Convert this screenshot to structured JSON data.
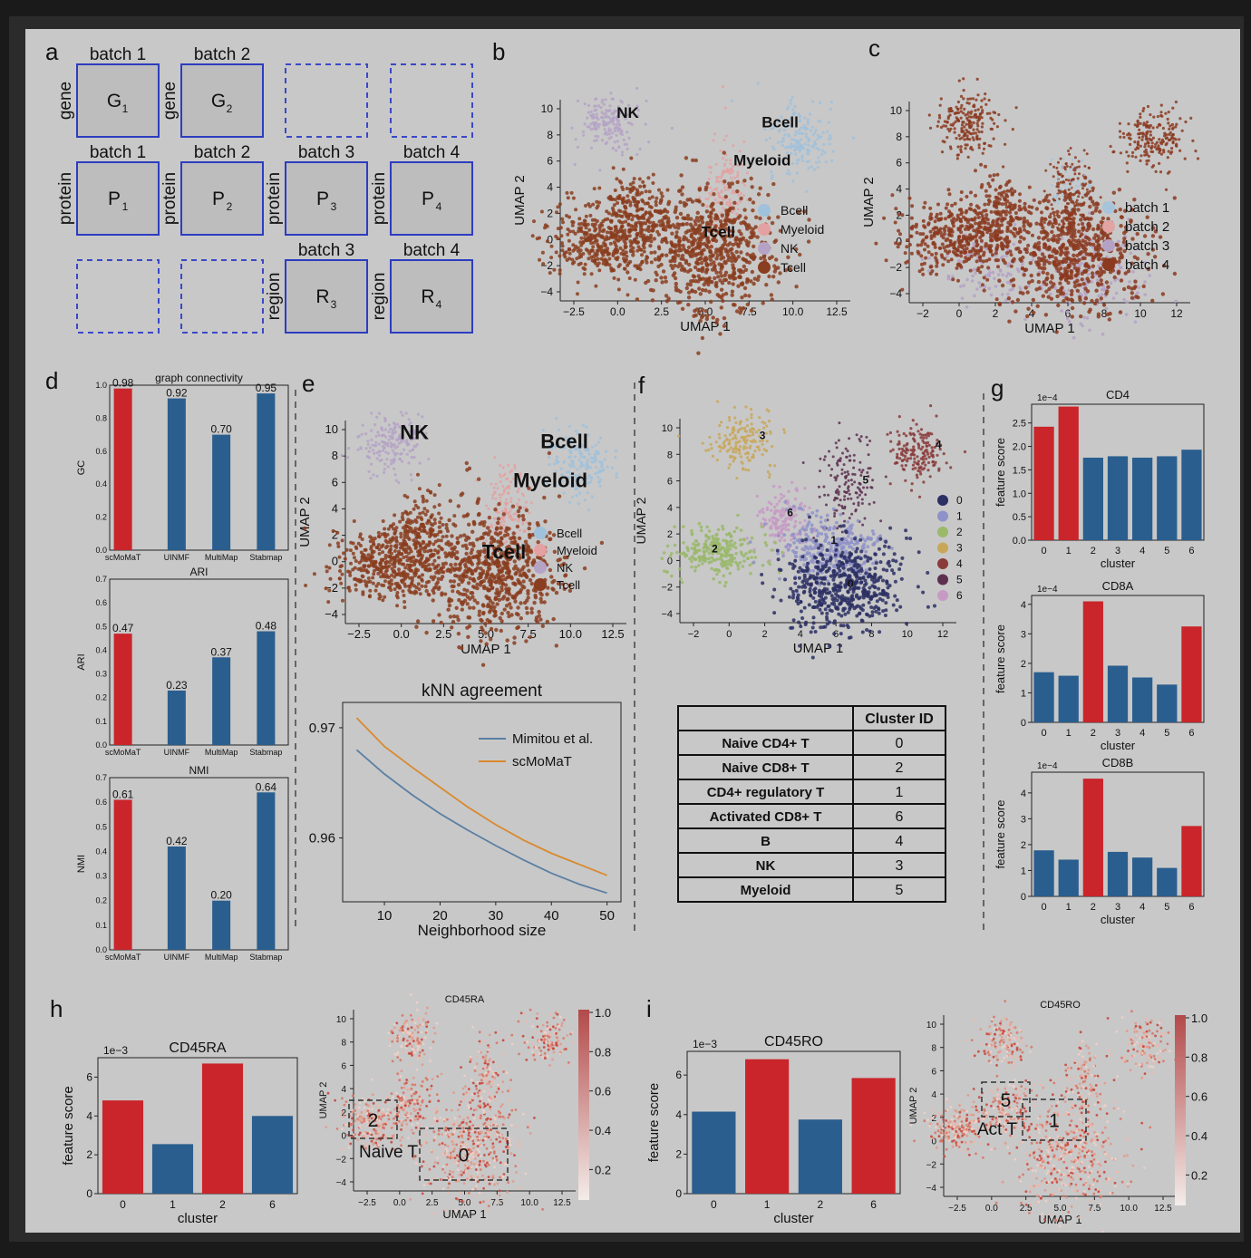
{
  "panel_labels": [
    "a",
    "b",
    "c",
    "d",
    "e",
    "f",
    "g",
    "h",
    "i"
  ],
  "colors": {
    "scmomat": "#c9252a",
    "other": "#2a5e8e",
    "bcell": "#9fc1dc",
    "myeloid": "#e4a1a1",
    "nk": "#b5a3c6",
    "tcell": "#8a3d1f",
    "batch1": "#a6c4da",
    "batch2": "#e0a4a2",
    "batch3": "#b4a1c6",
    "batch4": "#8b3a20",
    "clusters": [
      "#2b2f63",
      "#8f92c9",
      "#9ab96b",
      "#c9a75a",
      "#8a3a3a",
      "#5c2f4f",
      "#c79ac4"
    ]
  },
  "panel_a": {
    "row1": [
      {
        "header": "batch 1",
        "side": "gene",
        "box": "G",
        "sub": "1"
      },
      {
        "header": "batch 2",
        "side": "gene",
        "box": "G",
        "sub": "2"
      },
      {
        "header": "",
        "side": "",
        "box": "",
        "sub": "",
        "empty": true
      },
      {
        "header": "",
        "side": "",
        "box": "",
        "sub": "",
        "empty": true
      }
    ],
    "row2": [
      {
        "header": "batch 1",
        "side": "protein",
        "box": "P",
        "sub": "1"
      },
      {
        "header": "batch 2",
        "side": "protein",
        "box": "P",
        "sub": "2"
      },
      {
        "header": "batch 3",
        "side": "protein",
        "box": "P",
        "sub": "3"
      },
      {
        "header": "batch 4",
        "side": "protein",
        "box": "P",
        "sub": "4"
      }
    ],
    "row3": [
      {
        "header": "",
        "side": "",
        "box": "",
        "sub": "",
        "empty": true
      },
      {
        "header": "",
        "side": "",
        "box": "",
        "sub": "",
        "empty": true
      },
      {
        "header": "batch 3",
        "side": "region",
        "box": "R",
        "sub": "3"
      },
      {
        "header": "batch 4",
        "side": "region",
        "box": "R",
        "sub": "4"
      }
    ]
  },
  "umap_b": {
    "xlabel": "UMAP 1",
    "ylabel": "UMAP 2",
    "xticks": [
      "−2.5",
      "0.0",
      "2.5",
      "5.0",
      "7.5",
      "10.0",
      "12.5"
    ],
    "yticks": [
      "10",
      "8",
      "6",
      "4",
      "2",
      "0",
      "−2",
      "−4"
    ],
    "labels": [
      "NK",
      "Bcell",
      "Myeloid",
      "Tcell"
    ],
    "legend": [
      "Bcell",
      "Myeloid",
      "NK",
      "Tcell"
    ]
  },
  "umap_c": {
    "xlabel": "UMAP 1",
    "ylabel": "UMAP 2",
    "xticks": [
      "−2",
      "0",
      "2",
      "4",
      "6",
      "8",
      "10",
      "12"
    ],
    "yticks": [
      "10",
      "8",
      "6",
      "4",
      "2",
      "0",
      "−2",
      "−4"
    ],
    "legend": [
      "batch 1",
      "batch 2",
      "batch 3",
      "batch 4"
    ]
  },
  "bars_d": [
    {
      "title": "graph connectivity",
      "ylabel": "GC",
      "ylim": [
        0,
        1.0
      ],
      "yticks": [
        "1.0",
        "0.8",
        "0.6",
        "0.4",
        "0.2",
        "0.0"
      ],
      "categories": [
        "scMoMaT",
        "UINMF",
        "MultiMap",
        "Stabmap"
      ],
      "values": [
        0.98,
        0.92,
        0.7,
        0.95
      ],
      "value_labels": [
        "0.98",
        "0.92",
        "0.70",
        "0.95"
      ]
    },
    {
      "title": "ARI",
      "ylabel": "ARI",
      "ylim": [
        0,
        0.7
      ],
      "yticks": [
        "0.7",
        "0.6",
        "0.5",
        "0.4",
        "0.3",
        "0.2",
        "0.1",
        "0.0"
      ],
      "categories": [
        "scMoMaT",
        "UINMF",
        "MultiMap",
        "Stabmap"
      ],
      "values": [
        0.47,
        0.23,
        0.37,
        0.48
      ],
      "value_labels": [
        "0.47",
        "0.23",
        "0.37",
        "0.48"
      ]
    },
    {
      "title": "NMI",
      "ylabel": "NMI",
      "ylim": [
        0,
        0.7
      ],
      "yticks": [
        "0.7",
        "0.6",
        "0.5",
        "0.4",
        "0.3",
        "0.2",
        "0.1",
        "0.0"
      ],
      "categories": [
        "scMoMaT",
        "UINMF",
        "MultiMap",
        "Stabmap"
      ],
      "values": [
        0.61,
        0.42,
        0.2,
        0.64
      ],
      "value_labels": [
        "0.61",
        "0.42",
        "0.20",
        "0.64"
      ]
    }
  ],
  "umap_e": {
    "xlabel": "UMAP 1",
    "ylabel": "UMAP 2",
    "xticks": [
      "−2.5",
      "0.0",
      "2.5",
      "5.0",
      "7.5",
      "10.0",
      "12.5"
    ],
    "yticks": [
      "10",
      "8",
      "6",
      "4",
      "2",
      "0",
      "−2",
      "−4"
    ],
    "labels": [
      "NK",
      "Bcell",
      "Myeloid",
      "Tcell"
    ],
    "legend": [
      "Bcell",
      "Myeloid",
      "NK",
      "Tcell"
    ]
  },
  "knn": {
    "title": "kNN agreement",
    "xlabel": "Neighborhood size",
    "xticks": [
      "10",
      "20",
      "30",
      "40",
      "50"
    ],
    "yticks": [
      "0.97",
      "0.96"
    ],
    "legend": [
      "Mimitou et al.",
      "scMoMaT"
    ],
    "line_colors": [
      "#5a7fa3",
      "#d9892e"
    ],
    "x": [
      5,
      10,
      15,
      20,
      25,
      30,
      35,
      40,
      45,
      50
    ],
    "series": [
      {
        "name": "Mimitou et al.",
        "values": [
          0.968,
          0.9658,
          0.9639,
          0.9622,
          0.9607,
          0.9593,
          0.958,
          0.9568,
          0.9558,
          0.955
        ]
      },
      {
        "name": "scMoMaT",
        "values": [
          0.9709,
          0.9683,
          0.9664,
          0.9646,
          0.9628,
          0.9612,
          0.9598,
          0.9586,
          0.9576,
          0.9566
        ]
      }
    ]
  },
  "umap_f": {
    "xlabel": "UMAP 1",
    "ylabel": "UMAP 2",
    "xticks": [
      "−2",
      "0",
      "2",
      "4",
      "6",
      "8",
      "10",
      "12"
    ],
    "yticks": [
      "10",
      "8",
      "6",
      "4",
      "2",
      "0",
      "−2",
      "−4"
    ],
    "cluster_labels": [
      "0",
      "1",
      "2",
      "3",
      "4",
      "5",
      "6"
    ],
    "legend": [
      "0",
      "1",
      "2",
      "3",
      "4",
      "5",
      "6"
    ]
  },
  "table_f": {
    "header": [
      "",
      "Cluster ID"
    ],
    "rows": [
      [
        "Naive CD4+ T",
        "0"
      ],
      [
        "Naive CD8+ T",
        "2"
      ],
      [
        "CD4+ regulatory T",
        "1"
      ],
      [
        "Activated CD8+  T",
        "6"
      ],
      [
        "B",
        "4"
      ],
      [
        "NK",
        "3"
      ],
      [
        "Myeloid",
        "5"
      ]
    ]
  },
  "bars_g": [
    {
      "title": "CD4",
      "exp": "1e−4",
      "ylabel": "feature score",
      "xlabel": "cluster",
      "yticks": [
        "2.5",
        "2.0",
        "1.5",
        "1.0",
        "0.5",
        "0.0"
      ],
      "ymax": 2.9,
      "categories": [
        "0",
        "1",
        "2",
        "3",
        "4",
        "5",
        "6"
      ],
      "values": [
        2.42,
        2.85,
        1.76,
        1.79,
        1.76,
        1.79,
        1.93
      ],
      "highlight": [
        0,
        1
      ]
    },
    {
      "title": "CD8A",
      "exp": "1e−4",
      "ylabel": "feature score",
      "xlabel": "cluster",
      "yticks": [
        "4",
        "3",
        "2",
        "1",
        "0"
      ],
      "ymax": 4.3,
      "categories": [
        "0",
        "1",
        "2",
        "3",
        "4",
        "5",
        "6"
      ],
      "values": [
        1.7,
        1.58,
        4.1,
        1.92,
        1.52,
        1.28,
        3.25
      ],
      "highlight": [
        2,
        6
      ]
    },
    {
      "title": "CD8B",
      "exp": "1e−4",
      "ylabel": "feature score",
      "xlabel": "cluster",
      "yticks": [
        "4",
        "3",
        "2",
        "1",
        "0"
      ],
      "ymax": 4.8,
      "categories": [
        "0",
        "1",
        "2",
        "3",
        "4",
        "5",
        "6"
      ],
      "values": [
        1.78,
        1.42,
        4.55,
        1.72,
        1.5,
        1.1,
        2.72
      ],
      "highlight": [
        2,
        6
      ]
    }
  ],
  "bar_h": {
    "title": "CD45RA",
    "exp": "1e−3",
    "ylabel": "feature score",
    "xlabel": "cluster",
    "yticks": [
      "6",
      "4",
      "2",
      "0"
    ],
    "ymax": 7.0,
    "categories": [
      "0",
      "1",
      "2",
      "6"
    ],
    "values": [
      4.8,
      2.55,
      6.7,
      4.0
    ],
    "highlight": [
      0,
      2
    ]
  },
  "umap_h": {
    "title": "CD45RA",
    "xlabel": "UMAP 1",
    "ylabel": "UMAP 2",
    "xticks": [
      "−2.5",
      "0.0",
      "2.5",
      "5.0",
      "7.5",
      "10.0",
      "12.5"
    ],
    "yticks": [
      "10",
      "8",
      "6",
      "4",
      "2",
      "0",
      "−2",
      "−4"
    ],
    "box_labels": [
      "2",
      "0"
    ],
    "annotation": "Naive T",
    "cbar_ticks": [
      "1.0",
      "0.8",
      "0.6",
      "0.4",
      "0.2"
    ]
  },
  "bar_i": {
    "title": "CD45RO",
    "exp": "1e−3",
    "ylabel": "feature score",
    "xlabel": "cluster",
    "yticks": [
      "6",
      "4",
      "2",
      "0"
    ],
    "ymax": 7.2,
    "categories": [
      "0",
      "1",
      "2",
      "6"
    ],
    "values": [
      4.15,
      6.8,
      3.75,
      5.85
    ],
    "highlight": [
      1,
      3
    ]
  },
  "umap_i": {
    "title": "CD45RO",
    "xlabel": "UMAP 1",
    "ylabel": "UMAP 2",
    "xticks": [
      "−2.5",
      "0.0",
      "2.5",
      "5.0",
      "7.5",
      "10.0",
      "12.5"
    ],
    "yticks": [
      "10",
      "8",
      "6",
      "4",
      "2",
      "0",
      "−2",
      "−4"
    ],
    "box_labels": [
      "5",
      "1"
    ],
    "annotation": "Act T",
    "cbar_ticks": [
      "1.0",
      "0.8",
      "0.6",
      "0.4",
      "0.2"
    ]
  }
}
